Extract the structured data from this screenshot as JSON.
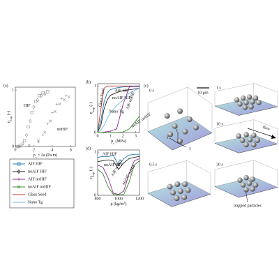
{
  "chart_data": [
    {
      "type": "scatter",
      "panel_label": "(a)",
      "y_label": {
        "text": "η",
        "sub": "cap",
        "rest": " (-)"
      },
      "x_label": {
        "text": "p",
        "sub": "s",
        "rest": " × 2a (Pa m)"
      },
      "xlim": [
        0,
        6.5
      ],
      "ylim": [
        0,
        1.05
      ],
      "xticks": [
        0,
        2,
        4,
        6
      ],
      "yticks": [
        0,
        1
      ],
      "annotations": [
        "HIF",
        "noHIF"
      ],
      "series": [
        {
          "marker": "square",
          "color": "#8c8c8c",
          "x": [
            0.2,
            0.6,
            1.0,
            1.4,
            1.8,
            2.2,
            2.6,
            3.0,
            3.5
          ],
          "values": [
            0,
            0.02,
            0.1,
            0.35,
            0.6,
            0.8,
            0.9,
            0.95,
            0.97
          ]
        },
        {
          "marker": "diamond",
          "color": "#8c8c8c",
          "x": [
            0.3,
            0.8,
            1.2,
            1.6,
            2.0,
            2.4,
            2.8,
            3.2
          ],
          "values": [
            0,
            0.05,
            0.2,
            0.45,
            0.7,
            0.82,
            0.9,
            0.93
          ]
        },
        {
          "marker": "plus",
          "color": "#8c8c8c",
          "x": [
            0.5,
            1.5,
            2.5,
            3.0,
            3.5,
            4.0,
            4.5,
            5.0,
            5.5
          ],
          "values": [
            0,
            0.01,
            0.08,
            0.2,
            0.4,
            0.6,
            0.75,
            0.85,
            0.9
          ]
        },
        {
          "marker": "x",
          "color": "#8c8c8c",
          "x": [
            0.5,
            1.5,
            2.5,
            3.2,
            3.8,
            4.3,
            4.8,
            5.3,
            5.8
          ],
          "values": [
            0,
            0.02,
            0.1,
            0.25,
            0.45,
            0.62,
            0.75,
            0.83,
            0.88
          ]
        }
      ],
      "legend": [
        {
          "name": "AIF HIF",
          "color": "#1f77b4",
          "marker": "square"
        },
        {
          "name": "noAIF HIF",
          "color": "#222222",
          "marker": "diamond"
        },
        {
          "name": "AIF noHIF",
          "color": "#8e2c8e",
          "marker": "plus"
        },
        {
          "name": "noAIF noHIF",
          "color": "#3a8a2e",
          "marker": "x"
        },
        {
          "name": "Glass Seed",
          "color": "#c0392b",
          "marker": "none"
        },
        {
          "name": "Nano Tg",
          "color": "#6fb8e0",
          "marker": "none"
        }
      ]
    },
    {
      "type": "line",
      "panel_label": "(b)",
      "y_label": {
        "text": "η",
        "sub": "cap",
        "rest": " (-)"
      },
      "x_label": {
        "text": "p",
        "sub": "s",
        "rest": " (MPa)"
      },
      "xlim": [
        0,
        3.3
      ],
      "ylim": [
        0,
        1.05
      ],
      "xticks": [
        0,
        1,
        2,
        3
      ],
      "yticks": [
        0,
        1
      ],
      "x": [
        0,
        0.25,
        0.5,
        0.75,
        1,
        1.5,
        2,
        2.5,
        3,
        3.3
      ],
      "series": [
        {
          "name": "Glass Seed",
          "color": "#c0392b",
          "values": [
            0,
            0.5,
            0.95,
            1,
            1,
            1,
            1,
            1,
            1,
            1
          ]
        },
        {
          "name": "AIF HIF",
          "color": "#1f77b4",
          "values": [
            0.02,
            0.25,
            0.65,
            0.85,
            0.92,
            0.96,
            0.98,
            0.99,
            0.99,
            0.99
          ]
        },
        {
          "name": "noAIF HIF",
          "color": "#222222",
          "values": [
            0.01,
            0.15,
            0.5,
            0.7,
            0.8,
            0.86,
            0.9,
            0.92,
            0.94,
            0.95
          ]
        },
        {
          "name": "Nano Tg",
          "color": "#6fb8e0",
          "values": [
            0,
            0.05,
            0.15,
            0.3,
            0.42,
            0.58,
            0.7,
            0.85,
            0.92,
            0.95
          ]
        },
        {
          "name": "AIF noHIF",
          "color": "#8e2c8e",
          "values": [
            0,
            0,
            0.01,
            0.02,
            0.03,
            0.08,
            0.6,
            0.98,
            1,
            1
          ]
        },
        {
          "name": "noAIF noHIF",
          "color": "#3a8a2e",
          "values": [
            0,
            0,
            0,
            0,
            0,
            0,
            0.01,
            0.08,
            0.25,
            0.35
          ]
        }
      ]
    },
    {
      "type": "line",
      "panel_label": "(d)",
      "y_label": {
        "text": "η",
        "sub": "cap",
        "rest": " (-)"
      },
      "x_label": {
        "text": "ρ (kg/m",
        "sup": "3",
        "rest": ")"
      },
      "xlim": [
        800,
        1200
      ],
      "ylim": [
        0,
        1.05
      ],
      "xticks": [
        800,
        1000,
        1200
      ],
      "yticks": [
        0,
        1
      ],
      "x": [
        800,
        850,
        900,
        950,
        1000,
        1050,
        1100,
        1150,
        1200
      ],
      "series": [
        {
          "name": "AIF HIF",
          "color": "#1f77b4",
          "values": [
            0.88,
            0.9,
            0.9,
            0.92,
            0.7,
            0.85,
            0.93,
            0.95,
            0.95
          ]
        },
        {
          "name": "noAIF HIF",
          "color": "#222222",
          "values": [
            0.78,
            0.8,
            0.82,
            0.8,
            0.6,
            0.75,
            0.85,
            0.88,
            0.9
          ]
        },
        {
          "name": "AIF noHIF",
          "color": "#8e2c8e",
          "values": [
            0.7,
            0.65,
            0.4,
            0.05,
            0.02,
            0.1,
            0.5,
            0.8,
            0.85
          ]
        },
        {
          "name": "noAIF noHIF",
          "color": "#3a8a2e",
          "values": [
            0.6,
            0.5,
            0.2,
            0.02,
            0.01,
            0.02,
            0.3,
            0.7,
            0.8
          ]
        }
      ]
    }
  ],
  "panel_c": {
    "label": "(c)",
    "times": [
      "0 s",
      "0.5 s",
      "1 s",
      "10 s",
      "30 s"
    ],
    "scale_bar": "10 μm",
    "flow": "flow",
    "trapped": "trapped particles",
    "axes": [
      "x",
      "y",
      "z"
    ]
  }
}
